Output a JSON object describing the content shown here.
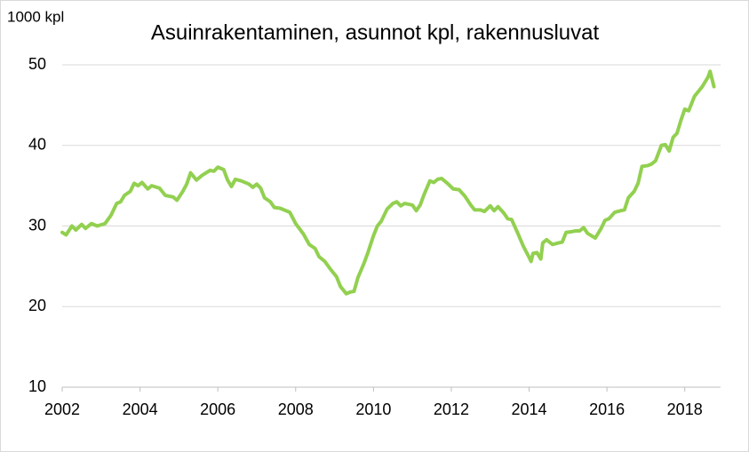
{
  "chart_data": {
    "type": "line",
    "title": "Asuinrakentaminen, asunnot kpl, rakennusluvat",
    "y_label": "1000 kpl",
    "x": [
      2002.0,
      2002.1,
      2002.25,
      2002.35,
      2002.5,
      2002.6,
      2002.75,
      2002.9,
      2003.1,
      2003.25,
      2003.4,
      2003.5,
      2003.6,
      2003.75,
      2003.85,
      2003.95,
      2004.05,
      2004.2,
      2004.3,
      2004.5,
      2004.65,
      2004.85,
      2004.95,
      2005.1,
      2005.2,
      2005.3,
      2005.45,
      2005.6,
      2005.8,
      2005.9,
      2006.0,
      2006.15,
      2006.25,
      2006.35,
      2006.45,
      2006.6,
      2006.8,
      2006.9,
      2007.0,
      2007.1,
      2007.2,
      2007.35,
      2007.45,
      2007.6,
      2007.75,
      2007.85,
      2008.0,
      2008.2,
      2008.35,
      2008.5,
      2008.6,
      2008.75,
      2008.9,
      2009.05,
      2009.15,
      2009.3,
      2009.4,
      2009.5,
      2009.6,
      2009.75,
      2009.85,
      2010.0,
      2010.1,
      2010.2,
      2010.35,
      2010.5,
      2010.6,
      2010.7,
      2010.8,
      2011.0,
      2011.1,
      2011.2,
      2011.3,
      2011.45,
      2011.55,
      2011.65,
      2011.75,
      2011.9,
      2012.05,
      2012.2,
      2012.35,
      2012.5,
      2012.6,
      2012.75,
      2012.85,
      2013.0,
      2013.1,
      2013.2,
      2013.35,
      2013.45,
      2013.55,
      2013.7,
      2013.85,
      2014.0,
      2014.05,
      2014.1,
      2014.2,
      2014.3,
      2014.35,
      2014.45,
      2014.6,
      2014.75,
      2014.85,
      2014.95,
      2015.1,
      2015.2,
      2015.3,
      2015.4,
      2015.5,
      2015.6,
      2015.7,
      2015.85,
      2015.95,
      2016.05,
      2016.2,
      2016.35,
      2016.45,
      2016.55,
      2016.7,
      2016.8,
      2016.9,
      2017.05,
      2017.15,
      2017.25,
      2017.4,
      2017.5,
      2017.6,
      2017.7,
      2017.8,
      2017.9,
      2018.0,
      2018.1,
      2018.25,
      2018.35,
      2018.45,
      2018.6,
      2018.65,
      2018.75
    ],
    "series": [
      {
        "color": "#92d050",
        "values": [
          29.2,
          28.9,
          30.0,
          29.5,
          30.2,
          29.7,
          30.3,
          30.0,
          30.3,
          31.3,
          32.8,
          33.0,
          33.8,
          34.3,
          35.3,
          35.0,
          35.4,
          34.6,
          35.0,
          34.7,
          33.8,
          33.6,
          33.2,
          34.3,
          35.2,
          36.6,
          35.7,
          36.3,
          36.9,
          36.8,
          37.3,
          37.0,
          35.7,
          34.9,
          35.8,
          35.6,
          35.2,
          34.8,
          35.2,
          34.7,
          33.5,
          33.0,
          32.3,
          32.2,
          31.9,
          31.7,
          30.3,
          29.0,
          27.7,
          27.2,
          26.2,
          25.6,
          24.6,
          23.7,
          22.5,
          21.6,
          21.8,
          21.9,
          23.6,
          25.3,
          26.6,
          28.8,
          30.0,
          30.6,
          32.1,
          32.8,
          33.0,
          32.5,
          32.8,
          32.6,
          31.9,
          32.6,
          33.9,
          35.6,
          35.4,
          35.8,
          35.9,
          35.3,
          34.6,
          34.5,
          33.7,
          32.6,
          32.0,
          32.0,
          31.8,
          32.5,
          31.9,
          32.4,
          31.6,
          30.9,
          30.8,
          29.2,
          27.5,
          26.1,
          25.6,
          26.6,
          26.7,
          25.9,
          27.9,
          28.3,
          27.7,
          27.9,
          28.0,
          29.2,
          29.3,
          29.4,
          29.4,
          29.8,
          29.1,
          28.8,
          28.5,
          29.7,
          30.7,
          30.9,
          31.7,
          31.9,
          32.0,
          33.5,
          34.3,
          35.3,
          37.4,
          37.5,
          37.7,
          38.1,
          40.0,
          40.1,
          39.3,
          41.0,
          41.5,
          43.1,
          44.5,
          44.3,
          46.1,
          46.7,
          47.3,
          48.5,
          49.2,
          47.3
        ]
      }
    ],
    "xlim": [
      2002,
      2018.92
    ],
    "xticks": [
      2002,
      2004,
      2006,
      2008,
      2010,
      2012,
      2014,
      2016,
      2018
    ],
    "ylim": [
      10,
      50
    ],
    "yticks": [
      10,
      20,
      30,
      40,
      50
    ],
    "grid": true
  }
}
